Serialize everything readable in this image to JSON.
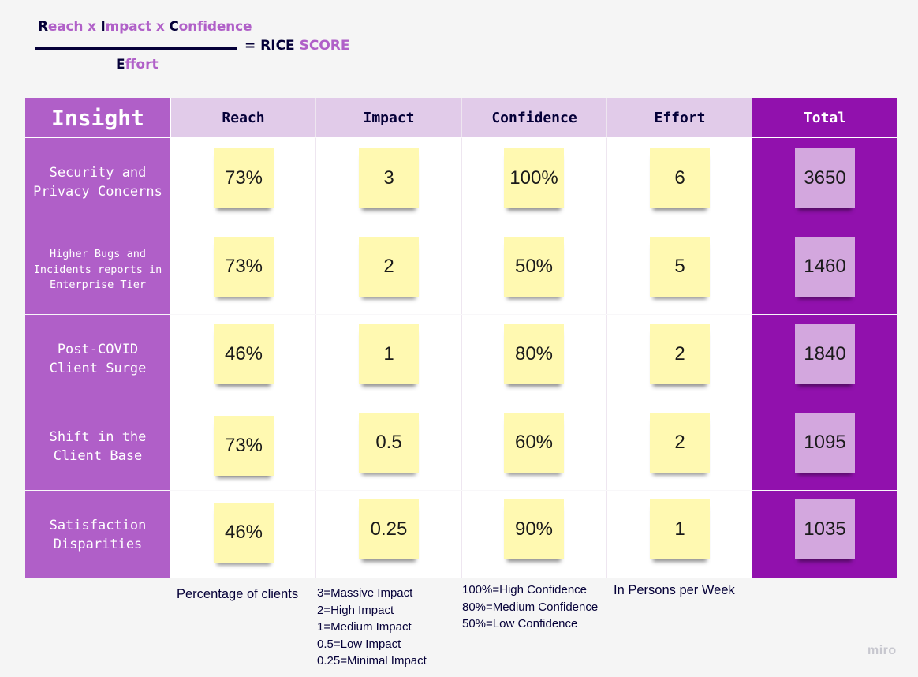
{
  "formula": {
    "numerator_parts": [
      "R",
      "each x ",
      "I",
      "mpact x ",
      "C",
      "onfidence"
    ],
    "denominator_parts": [
      "E",
      "ffort"
    ],
    "equals_parts": [
      "= RICE ",
      "SCORE"
    ]
  },
  "table": {
    "headers": [
      "Insight",
      "Reach",
      "Impact",
      "Confidence",
      "Effort",
      "Total"
    ],
    "rows": [
      {
        "insight": "Security and Privacy Concerns",
        "reach": "73%",
        "impact": "3",
        "confidence": "100%",
        "effort": "6",
        "total": "3650"
      },
      {
        "insight": "Higher Bugs and Incidents reports in Enterprise Tier",
        "reach": "73%",
        "impact": "2",
        "confidence": "50%",
        "effort": "5",
        "total": "1460"
      },
      {
        "insight": "Post-COVID Client Surge",
        "reach": "46%",
        "impact": "1",
        "confidence": "80%",
        "effort": "2",
        "total": "1840"
      },
      {
        "insight": "Shift in the Client Base",
        "reach": "73%",
        "impact": "0.5",
        "confidence": "60%",
        "effort": "2",
        "total": "1095"
      },
      {
        "insight": "Satisfaction Disparities",
        "reach": "46%",
        "impact": "0.25",
        "confidence": "90%",
        "effort": "1",
        "total": "1035"
      }
    ]
  },
  "notes": {
    "reach": "Percentage of clients",
    "impact": [
      "3=Massive Impact",
      "2=High Impact",
      "1=Medium Impact",
      "0.5=Low Impact",
      "0.25=Minimal Impact"
    ],
    "confidence": [
      "100%=High Confidence",
      "80%=Medium Confidence",
      "50%=Low Confidence"
    ],
    "effort": "In Persons per Week"
  },
  "watermark": "miro",
  "colors": {
    "insight_column": "#b05fc8",
    "total_column": "#9111ad",
    "header_cells": "#e1cbe9",
    "sticky_note": "#fff9b1",
    "total_sticky": "#d3a7de",
    "text_dark": "#050038"
  }
}
